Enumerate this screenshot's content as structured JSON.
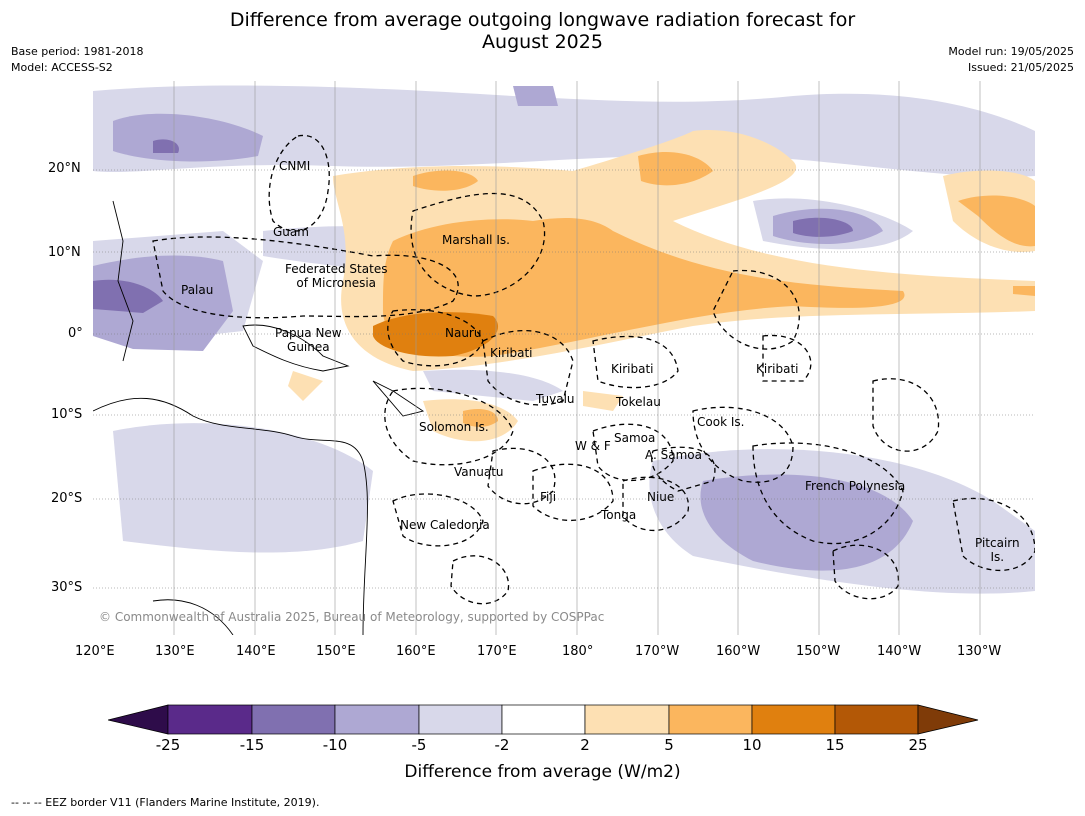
{
  "title": {
    "line1": "Difference from average outgoing longwave radiation forecast for",
    "line2": "August 2025"
  },
  "meta": {
    "base_period": "Base period: 1981-2018",
    "model": "Model: ACCESS-S2",
    "model_run": "Model run: 19/05/2025",
    "issued": "Issued: 21/05/2025"
  },
  "axes": {
    "lon_labels": [
      "120°E",
      "130°E",
      "140°E",
      "150°E",
      "160°E",
      "170°E",
      "180°",
      "170°W",
      "160°W",
      "150°W",
      "140°W",
      "130°W"
    ],
    "lat_labels": [
      "20°N",
      "10°N",
      "0°",
      "10°S",
      "20°S",
      "30°S"
    ]
  },
  "places": [
    "CNMI",
    "Guam",
    "Federated States\nof Micronesia",
    "Marshall Is.",
    "Palau",
    "Papua New\nGuinea",
    "Nauru",
    "Kiribati",
    "Kiribati",
    "Kiribati",
    "Tuvalu",
    "Tokelau",
    "Solomon Is.",
    "Cook Is.",
    "Samoa",
    "W & F",
    "A. Samoa",
    "Vanuatu",
    "Fiji",
    "Niue",
    "Tonga",
    "French Polynesia",
    "New Caledonia",
    "Pitcairn\nIs."
  ],
  "copyright": "© Commonwealth of Australia 2025, Bureau of Meteorology, supported by COSPPac",
  "colorbar": {
    "ticks": [
      "-25",
      "-15",
      "-10",
      "-5",
      "-2",
      "2",
      "5",
      "10",
      "15",
      "25"
    ],
    "colors": [
      "#2e0c4a",
      "#5a2a8a",
      "#8070b0",
      "#aea8d3",
      "#d8d8ea",
      "#ffffff",
      "#fde0b3",
      "#fbb65e",
      "#e0800f",
      "#b35806",
      "#7f3b08"
    ],
    "label": "Difference from average (W/m2)"
  },
  "footnote": "--  --  -- EEZ border V11 (Flanders Marine Institute, 2019).",
  "map_colors": {
    "pale_purple": "#d8d8ea",
    "light_purple": "#aea8d3",
    "mid_purple": "#8070b0",
    "light_orange": "#fde0b3",
    "orange": "#fbb65e",
    "dark_orange": "#e0800f"
  }
}
